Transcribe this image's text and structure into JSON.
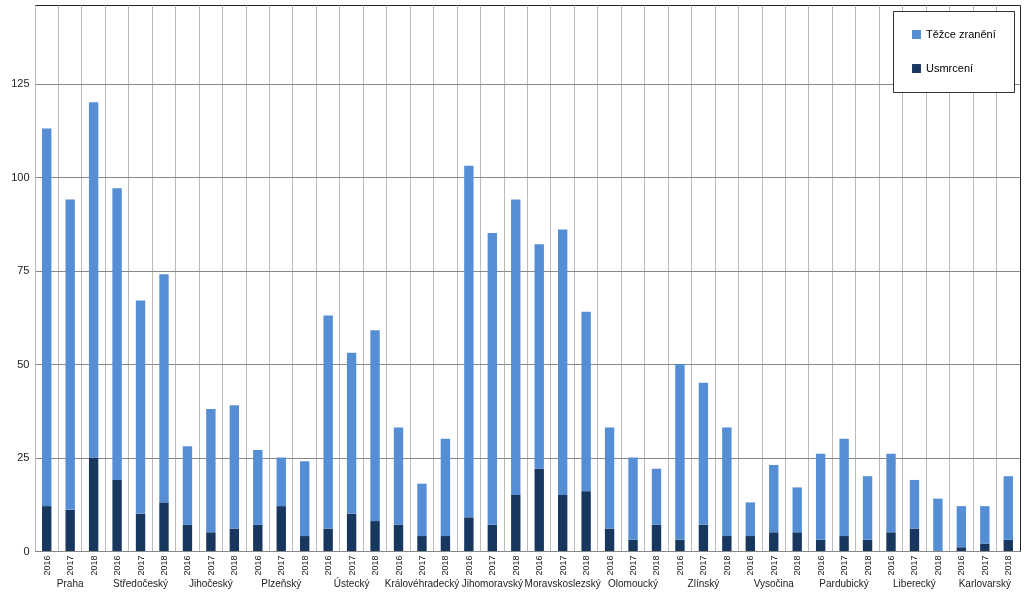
{
  "chart_data": {
    "type": "bar",
    "stacked": true,
    "categories": [
      "2016",
      "2017",
      "2018",
      "2016",
      "2017",
      "2018",
      "2016",
      "2017",
      "2018",
      "2016",
      "2017",
      "2018",
      "2016",
      "2017",
      "2018",
      "2016",
      "2017",
      "2018",
      "2016",
      "2017",
      "2018",
      "2016",
      "2017",
      "2018",
      "2016",
      "2017",
      "2018",
      "2016",
      "2017",
      "2018",
      "2016",
      "2017",
      "2018",
      "2016",
      "2017",
      "2018",
      "2016",
      "2017",
      "2018",
      "2016",
      "2017",
      "2018"
    ],
    "annotations": [
      "Praha",
      "Středočeský",
      "Jihočeský",
      "Plzeňský",
      "Ústecký",
      "Královéhradecký",
      "Jihomoravský",
      "Moravskoslezský",
      "Olomoucký",
      "Zlínský",
      "Vysočina",
      "Pardubický",
      "Liberecký",
      "Karlovarský"
    ],
    "series": [
      {
        "name": "Usmrcení",
        "color": "#17375e",
        "values": [
          12,
          11,
          25,
          19,
          10,
          13,
          7,
          5,
          6,
          7,
          12,
          4,
          6,
          10,
          8,
          7,
          4,
          4,
          9,
          7,
          15,
          22,
          15,
          16,
          6,
          3,
          7,
          3,
          7,
          4,
          4,
          5,
          5,
          3,
          4,
          3,
          5,
          6,
          0,
          1,
          2,
          3
        ]
      },
      {
        "name": "Těžce zranění",
        "color": "#558ed5",
        "values": [
          101,
          83,
          95,
          78,
          57,
          61,
          21,
          33,
          33,
          20,
          13,
          20,
          57,
          43,
          51,
          26,
          14,
          26,
          94,
          78,
          79,
          60,
          71,
          48,
          27,
          22,
          15,
          47,
          38,
          29,
          9,
          18,
          12,
          23,
          26,
          17,
          21,
          13,
          14,
          11,
          10,
          17
        ]
      }
    ],
    "ylim": [
      0,
      146
    ],
    "yticks": [
      0,
      25,
      50,
      75,
      100,
      125
    ],
    "grid": true,
    "legend": "top right"
  }
}
